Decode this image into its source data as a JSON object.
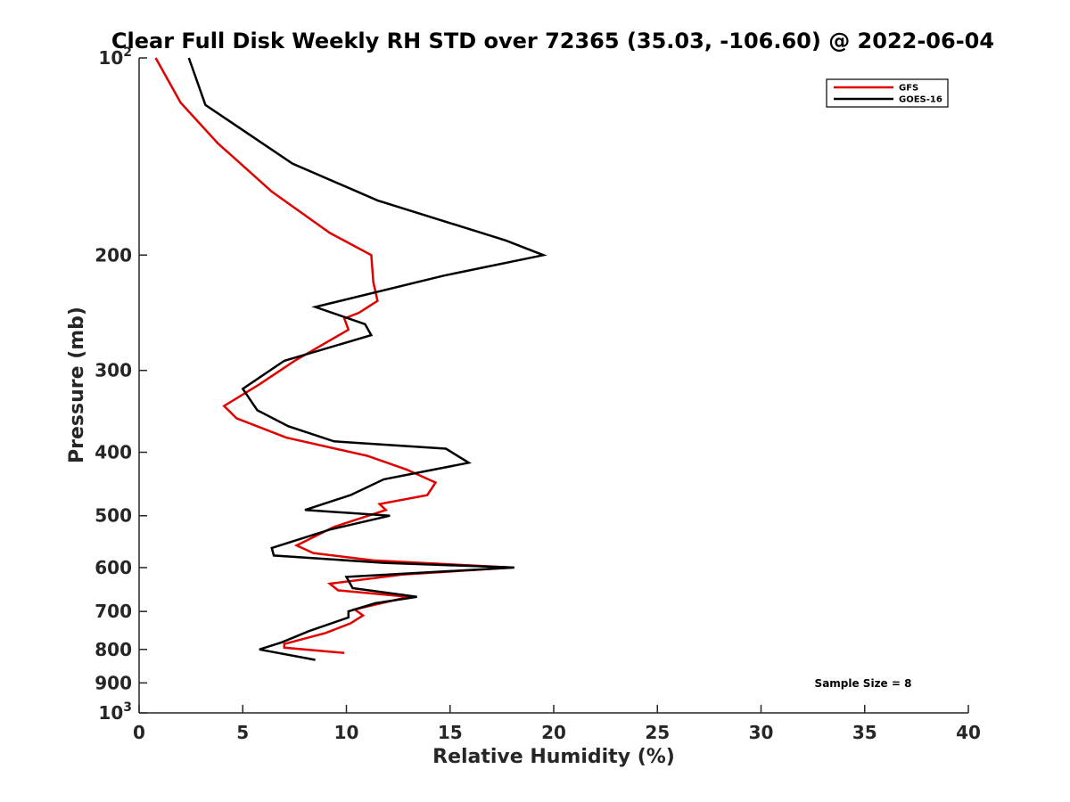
{
  "chart_data": {
    "type": "line",
    "title": "Clear Full Disk Weekly RH STD over 72365 (35.03, -106.60) @ 2022-06-04",
    "xlabel": "Relative Humidity (%)",
    "ylabel": "Pressure (mb)",
    "xlim": [
      0,
      40
    ],
    "ylim": [
      100,
      1000
    ],
    "y_scale": "log",
    "y_reversed": true,
    "grid": false,
    "legend_position": "top-right",
    "x_ticks": [
      0,
      5,
      10,
      15,
      20,
      25,
      30,
      35,
      40
    ],
    "x_tick_labels": [
      "0",
      "5",
      "10",
      "15",
      "20",
      "25",
      "30",
      "35",
      "40"
    ],
    "y_ticks": [
      100,
      200,
      300,
      400,
      500,
      600,
      700,
      800,
      900,
      1000
    ],
    "y_tick_labels": [
      {
        "base": "10",
        "exp": "2"
      },
      {
        "base": "200",
        "exp": ""
      },
      {
        "base": "300",
        "exp": ""
      },
      {
        "base": "400",
        "exp": ""
      },
      {
        "base": "500",
        "exp": ""
      },
      {
        "base": "600",
        "exp": ""
      },
      {
        "base": "700",
        "exp": ""
      },
      {
        "base": "800",
        "exp": ""
      },
      {
        "base": "900",
        "exp": ""
      },
      {
        "base": "10",
        "exp": "3"
      }
    ],
    "annotation": "Sample Size = 8",
    "series": [
      {
        "name": "GFS",
        "color": "#e00000",
        "points": [
          [
            0.8,
            100
          ],
          [
            2.0,
            117
          ],
          [
            3.8,
            135
          ],
          [
            6.4,
            160
          ],
          [
            9.2,
            185
          ],
          [
            11.2,
            200
          ],
          [
            11.3,
            220
          ],
          [
            11.5,
            235
          ],
          [
            10.6,
            245
          ],
          [
            9.9,
            250
          ],
          [
            10.1,
            260
          ],
          [
            7.5,
            290
          ],
          [
            5.8,
            315
          ],
          [
            4.1,
            340
          ],
          [
            4.7,
            355
          ],
          [
            7.1,
            380
          ],
          [
            11.0,
            405
          ],
          [
            12.9,
            425
          ],
          [
            14.3,
            445
          ],
          [
            13.9,
            465
          ],
          [
            11.6,
            480
          ],
          [
            11.9,
            490
          ],
          [
            9.4,
            520
          ],
          [
            7.6,
            555
          ],
          [
            8.4,
            570
          ],
          [
            11.3,
            585
          ],
          [
            18.0,
            600
          ],
          [
            12.7,
            615
          ],
          [
            9.2,
            635
          ],
          [
            9.6,
            650
          ],
          [
            13.0,
            665
          ],
          [
            10.4,
            695
          ],
          [
            10.8,
            710
          ],
          [
            10.2,
            730
          ],
          [
            9.0,
            755
          ],
          [
            7.0,
            785
          ],
          [
            7.0,
            795
          ],
          [
            9.9,
            810
          ]
        ]
      },
      {
        "name": "GOES-16",
        "color": "#000000",
        "points": [
          [
            2.4,
            100
          ],
          [
            3.2,
            118
          ],
          [
            7.4,
            145
          ],
          [
            11.5,
            165
          ],
          [
            17.7,
            190
          ],
          [
            19.5,
            200
          ],
          [
            14.7,
            215
          ],
          [
            8.5,
            240
          ],
          [
            10.9,
            255
          ],
          [
            11.2,
            265
          ],
          [
            7.0,
            290
          ],
          [
            5.0,
            320
          ],
          [
            5.7,
            345
          ],
          [
            7.2,
            365
          ],
          [
            9.4,
            385
          ],
          [
            14.8,
            395
          ],
          [
            15.9,
            415
          ],
          [
            11.8,
            440
          ],
          [
            10.2,
            465
          ],
          [
            8.0,
            490
          ],
          [
            12.1,
            500
          ],
          [
            9.2,
            525
          ],
          [
            6.4,
            560
          ],
          [
            6.5,
            575
          ],
          [
            11.8,
            590
          ],
          [
            18.1,
            600
          ],
          [
            10.0,
            620
          ],
          [
            10.3,
            645
          ],
          [
            13.4,
            665
          ],
          [
            11.4,
            680
          ],
          [
            10.1,
            700
          ],
          [
            10.1,
            715
          ],
          [
            8.2,
            750
          ],
          [
            6.9,
            780
          ],
          [
            5.8,
            800
          ],
          [
            8.5,
            830
          ]
        ]
      }
    ]
  }
}
